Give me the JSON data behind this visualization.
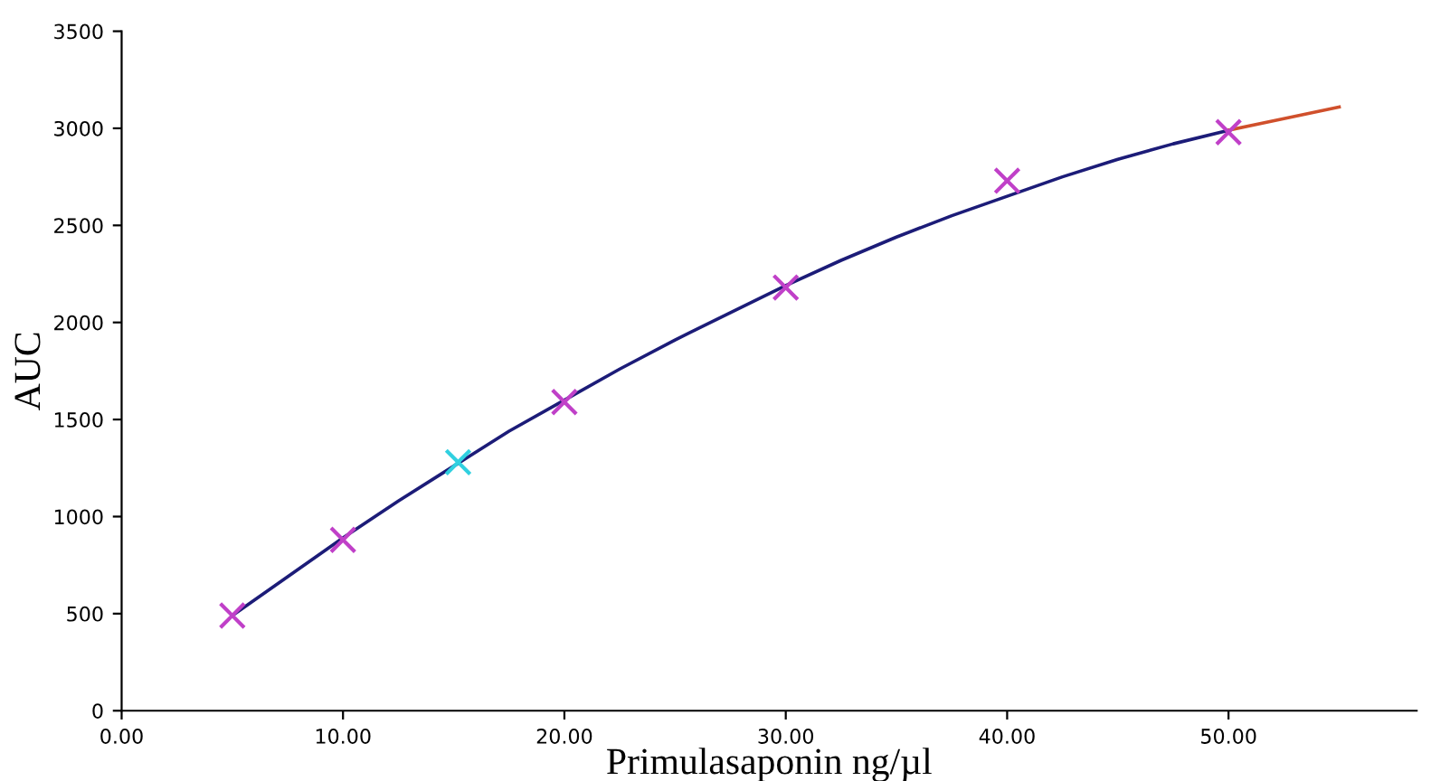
{
  "chart_data": {
    "type": "line",
    "xlabel": "Primulasaponin ng/µl",
    "ylabel": "AUC",
    "series": [
      {
        "color": "#1c1c78",
        "x": [
          5,
          7.5,
          10,
          12.5,
          15,
          17.5,
          20,
          22.5,
          25,
          27.5,
          30,
          32.5,
          35,
          37.5,
          40,
          42.5,
          45,
          47.5,
          50
        ],
        "values": [
          490,
          690,
          890,
          1080,
          1260,
          1440,
          1600,
          1760,
          1910,
          2050,
          2190,
          2320,
          2440,
          2550,
          2650,
          2750,
          2840,
          2920,
          2990
        ]
      },
      {
        "color": "#d0502c",
        "x": [
          50,
          52.5,
          55
        ],
        "values": [
          2990,
          3050,
          3110
        ]
      },
      {
        "type": "scatter",
        "color": "#c040c8",
        "marker": "cross",
        "x": [
          5,
          10,
          20,
          30,
          40,
          50
        ],
        "values": [
          490,
          880,
          1590,
          2180,
          2730,
          2980
        ]
      },
      {
        "type": "scatter",
        "color": "#30d0e0",
        "marker": "cross",
        "x": [
          15.2
        ],
        "values": [
          1280
        ]
      }
    ],
    "xlim": [
      0,
      58.5
    ],
    "ylim": [
      0,
      3500
    ],
    "xticks": [
      {
        "value": 0,
        "label": "0.00"
      },
      {
        "value": 10,
        "label": "10.00"
      },
      {
        "value": 20,
        "label": "20.00"
      },
      {
        "value": 30,
        "label": "30.00"
      },
      {
        "value": 40,
        "label": "40.00"
      },
      {
        "value": 50,
        "label": "50.00"
      }
    ],
    "yticks": [
      0,
      500,
      1000,
      1500,
      2000,
      2500,
      3000,
      3500
    ],
    "grid": false,
    "legend": false
  }
}
